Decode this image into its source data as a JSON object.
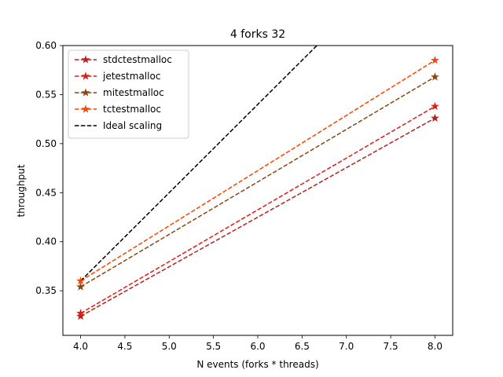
{
  "chart_data": {
    "type": "line",
    "title": "4 forks 32",
    "xlabel": "N events (forks * threads)",
    "ylabel": "throughput",
    "xlim": [
      3.8,
      8.2
    ],
    "ylim": [
      0.3045,
      0.6
    ],
    "xticks": [
      "4.0",
      "4.5",
      "5.0",
      "5.5",
      "6.0",
      "6.5",
      "7.0",
      "7.5",
      "8.0"
    ],
    "yticks": [
      "0.35",
      "0.40",
      "0.45",
      "0.50",
      "0.55",
      "0.60"
    ],
    "grid": false,
    "legend_position": "top-left",
    "series": [
      {
        "name": "stdctestmalloc",
        "color": "#b22222",
        "marker": "star",
        "linestyle": "dashed",
        "x": [
          4,
          8
        ],
        "y": [
          0.324,
          0.526
        ]
      },
      {
        "name": "jetestmalloc",
        "color": "#e31a1c",
        "marker": "star",
        "linestyle": "dashed",
        "x": [
          4,
          8
        ],
        "y": [
          0.327,
          0.538
        ]
      },
      {
        "name": "mitestmalloc",
        "color": "#8b4513",
        "marker": "star",
        "linestyle": "dashed",
        "x": [
          4,
          8
        ],
        "y": [
          0.354,
          0.568
        ]
      },
      {
        "name": "tctestmalloc",
        "color": "#ff4500",
        "marker": "star",
        "linestyle": "dashed",
        "x": [
          4,
          8
        ],
        "y": [
          0.36,
          0.585
        ]
      },
      {
        "name": "Ideal scaling",
        "color": "#000000",
        "marker": "none",
        "linestyle": "dashed",
        "x": [
          4,
          8
        ],
        "y": [
          0.36,
          0.72
        ]
      }
    ]
  }
}
